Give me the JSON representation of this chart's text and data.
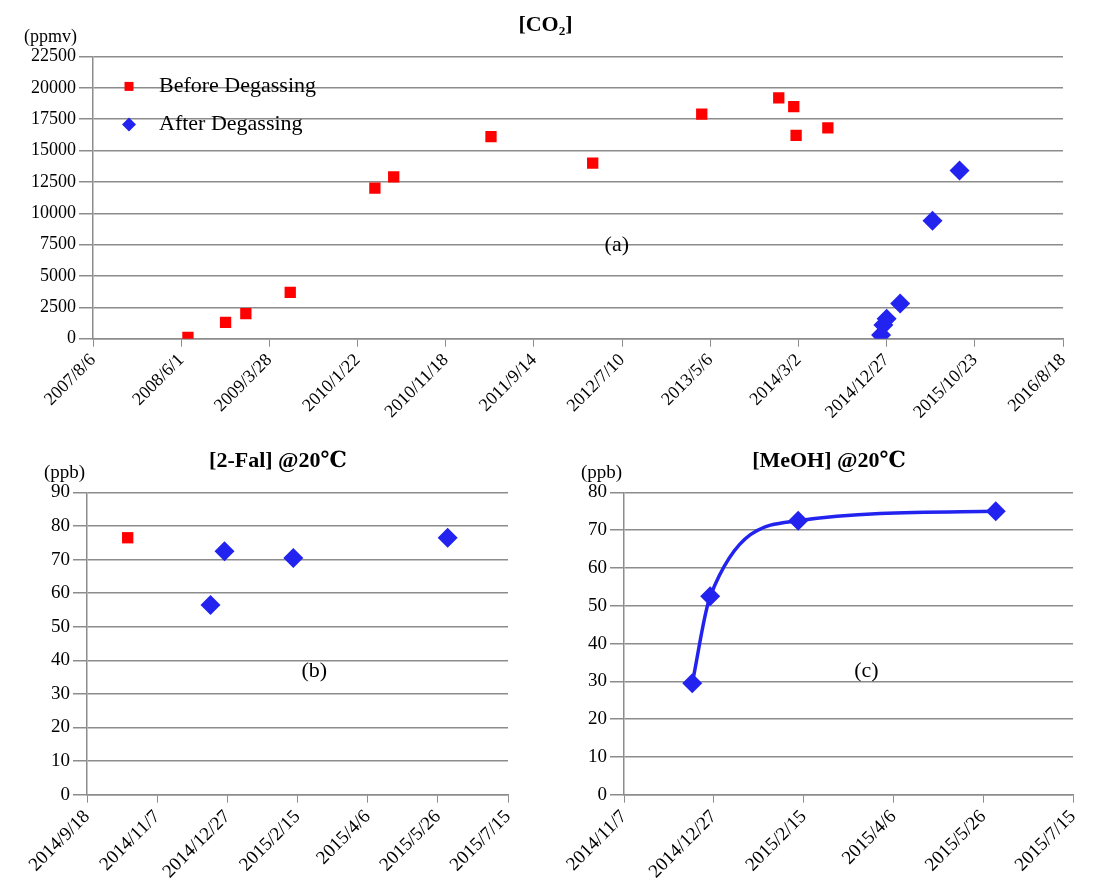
{
  "chart_data": [
    {
      "type": "scatter",
      "title": "[CO₂]",
      "ylabel": "(ppmv)",
      "annotations": [
        "(a)"
      ],
      "xlim": [
        "2007-08-06",
        "2016-08-18"
      ],
      "xticks": [
        {
          "value": "2007-08-06",
          "label": "2007/8/6"
        },
        {
          "value": "2008-06-01",
          "label": "2008/6/1"
        },
        {
          "value": "2009-03-28",
          "label": "2009/3/28"
        },
        {
          "value": "2010-01-22",
          "label": "2010/1/22"
        },
        {
          "value": "2010-11-18",
          "label": "2010/11/18"
        },
        {
          "value": "2011-09-14",
          "label": "2011/9/14"
        },
        {
          "value": "2012-07-10",
          "label": "2012/7/10"
        },
        {
          "value": "2013-05-06",
          "label": "2013/5/6"
        },
        {
          "value": "2014-03-02",
          "label": "2014/3/2"
        },
        {
          "value": "2014-12-27",
          "label": "2014/12/27"
        },
        {
          "value": "2015-10-23",
          "label": "2015/10/23"
        },
        {
          "value": "2016-08-18",
          "label": "2016/8/18"
        }
      ],
      "ylim": [
        0,
        22500
      ],
      "yticks": [
        0,
        2500,
        5000,
        7500,
        10000,
        12500,
        15000,
        17500,
        20000,
        22500
      ],
      "grid": "y",
      "legend": "top left",
      "series": [
        {
          "name": "Before Degassing",
          "color": "#ff0000",
          "marker": "square",
          "x": [
            "2008-06-24",
            "2008-10-30",
            "2009-01-07",
            "2009-06-07",
            "2010-03-22",
            "2010-05-25",
            "2011-04-21",
            "2012-04-01",
            "2013-04-07",
            "2013-12-25",
            "2014-02-14",
            "2014-02-22",
            "2014-06-10"
          ],
          "values": [
            100,
            1300,
            2000,
            3700,
            12000,
            12900,
            16100,
            14000,
            17900,
            19200,
            18500,
            16200,
            16800
          ]
        },
        {
          "name": "After Degassing",
          "color": "#2323f0",
          "marker": "diamond",
          "x": [
            "2014-12-08",
            "2014-12-16",
            "2014-12-27",
            "2015-02-11",
            "2015-06-01",
            "2015-09-01"
          ],
          "values": [
            300,
            1100,
            1600,
            2800,
            9400,
            13400
          ]
        }
      ]
    },
    {
      "type": "scatter",
      "title": "[2-Fal] @20℃",
      "ylabel": "(ppb)",
      "annotations": [
        "(b)"
      ],
      "xlim": [
        "2014-09-18",
        "2015-07-15"
      ],
      "xticks": [
        {
          "value": "2014-09-18",
          "label": "2014/9/18"
        },
        {
          "value": "2014-11-07",
          "label": "2014/11/7"
        },
        {
          "value": "2014-12-27",
          "label": "2014/12/27"
        },
        {
          "value": "2015-02-15",
          "label": "2015/2/15"
        },
        {
          "value": "2015-04-06",
          "label": "2015/4/6"
        },
        {
          "value": "2015-05-26",
          "label": "2015/5/26"
        },
        {
          "value": "2015-07-15",
          "label": "2015/7/15"
        }
      ],
      "ylim": [
        0,
        90
      ],
      "yticks": [
        0,
        10,
        20,
        30,
        40,
        50,
        60,
        70,
        80,
        90
      ],
      "grid": "y",
      "series": [
        {
          "color": "#ff0000",
          "marker": "square",
          "x": [
            "2014-10-17"
          ],
          "values": [
            76.5
          ]
        },
        {
          "color": "#2323f0",
          "marker": "diamond",
          "x": [
            "2014-12-15",
            "2014-12-25",
            "2015-02-12",
            "2015-06-02"
          ],
          "values": [
            56.5,
            72.5,
            70.5,
            76.5
          ]
        }
      ]
    },
    {
      "type": "line",
      "title": "[MeOH] @20℃",
      "ylabel": "(ppb)",
      "annotations": [
        "(c)"
      ],
      "xlim": [
        "2014-11-07",
        "2015-07-15"
      ],
      "xticks": [
        {
          "value": "2014-11-07",
          "label": "2014/11/7"
        },
        {
          "value": "2014-12-27",
          "label": "2014/12/27"
        },
        {
          "value": "2015-02-15",
          "label": "2015/2/15"
        },
        {
          "value": "2015-04-06",
          "label": "2015/4/6"
        },
        {
          "value": "2015-05-26",
          "label": "2015/5/26"
        },
        {
          "value": "2015-07-15",
          "label": "2015/7/15"
        }
      ],
      "ylim": [
        0,
        80
      ],
      "yticks": [
        0,
        10,
        20,
        30,
        40,
        50,
        60,
        70,
        80
      ],
      "grid": "y",
      "marker": "diamond",
      "line_style": "solid",
      "series": [
        {
          "color": "#2323f0",
          "x": [
            "2014-12-15",
            "2014-12-25",
            "2015-02-12",
            "2015-06-02"
          ],
          "values": [
            29.5,
            52.5,
            72.5,
            75
          ]
        }
      ]
    }
  ]
}
